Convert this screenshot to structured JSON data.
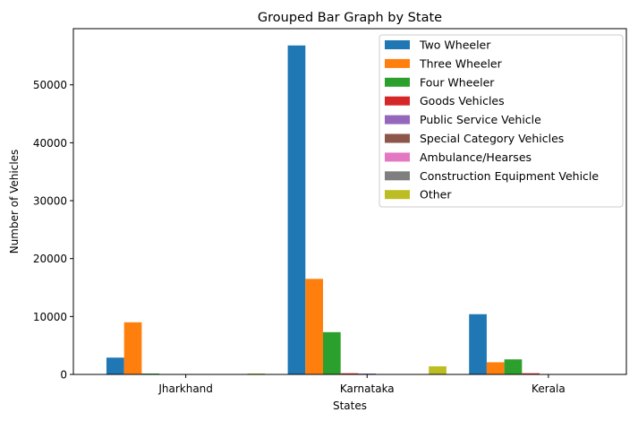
{
  "chart_data": {
    "type": "bar",
    "title": "Grouped Bar Graph by State",
    "xlabel": "States",
    "ylabel": "Number of Vehicles",
    "categories": [
      "Jharkhand",
      "Karnataka",
      "Kerala"
    ],
    "ylim": [
      0,
      59700
    ],
    "yticks": [
      0,
      10000,
      20000,
      30000,
      40000,
      50000
    ],
    "grid": false,
    "legend_position": "top-right",
    "series": [
      {
        "name": "Two Wheeler",
        "color": "#1f77b4",
        "values": [
          2900,
          56800,
          10400
        ]
      },
      {
        "name": "Three Wheeler",
        "color": "#ff7f0e",
        "values": [
          9000,
          16500,
          2100
        ]
      },
      {
        "name": "Four Wheeler",
        "color": "#2ca02c",
        "values": [
          150,
          7300,
          2600
        ]
      },
      {
        "name": "Goods Vehicles",
        "color": "#d62728",
        "values": [
          50,
          200,
          200
        ]
      },
      {
        "name": "Public Service Vehicle",
        "color": "#9467bd",
        "values": [
          20,
          150,
          30
        ]
      },
      {
        "name": "Special Category Vehicles",
        "color": "#8c564b",
        "values": [
          5,
          30,
          5
        ]
      },
      {
        "name": "Ambulance/Hearses",
        "color": "#e377c2",
        "values": [
          5,
          20,
          5
        ]
      },
      {
        "name": "Construction Equipment Vehicle",
        "color": "#7f7f7f",
        "values": [
          5,
          30,
          5
        ]
      },
      {
        "name": "Other",
        "color": "#bcbd22",
        "values": [
          150,
          1400,
          30
        ]
      }
    ]
  }
}
